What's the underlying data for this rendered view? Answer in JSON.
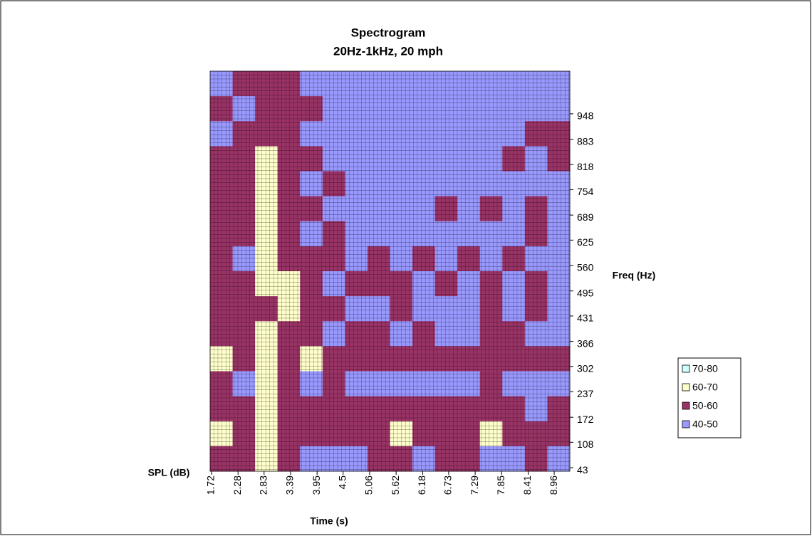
{
  "chart_data": {
    "type": "heatmap",
    "title": "Spectrogram",
    "subtitle": "20Hz-1kHz, 20 mph",
    "x_label": "Time (s)",
    "y_label": "Freq (Hz)",
    "z_label": "SPL (dB)",
    "xlim": [
      1.69,
      9.29
    ],
    "xticks": [
      1.72,
      2.28,
      2.83,
      3.39,
      3.95,
      4.5,
      5.06,
      5.62,
      6.18,
      6.73,
      7.29,
      7.85,
      8.41,
      8.96
    ],
    "ylim": [
      34,
      1057
    ],
    "yticks": [
      43,
      108,
      172,
      237,
      302,
      366,
      431,
      495,
      560,
      625,
      689,
      754,
      818,
      883,
      948
    ],
    "bands": [
      {
        "label": "40-50",
        "range": [
          40,
          50
        ],
        "color": "#9999ff"
      },
      {
        "label": "50-60",
        "range": [
          50,
          60
        ],
        "color": "#993366"
      },
      {
        "label": "60-70",
        "range": [
          60,
          70
        ],
        "color": "#ffffcc"
      },
      {
        "label": "70-80",
        "range": [
          70,
          80
        ],
        "color": "#ccffff"
      }
    ],
    "legend": "right",
    "z": [
      [
        45,
        55,
        55,
        55,
        45,
        45,
        45,
        45,
        45,
        45,
        45,
        45,
        45,
        45,
        45,
        45
      ],
      [
        55,
        45,
        55,
        55,
        55,
        45,
        45,
        45,
        45,
        45,
        45,
        45,
        45,
        45,
        45,
        45
      ],
      [
        45,
        55,
        55,
        55,
        45,
        45,
        45,
        45,
        45,
        45,
        45,
        45,
        45,
        45,
        55,
        55
      ],
      [
        55,
        55,
        65,
        55,
        55,
        45,
        45,
        45,
        45,
        45,
        45,
        45,
        45,
        55,
        45,
        55
      ],
      [
        55,
        55,
        65,
        55,
        45,
        55,
        45,
        45,
        45,
        45,
        45,
        45,
        45,
        45,
        45,
        45
      ],
      [
        55,
        55,
        65,
        55,
        55,
        45,
        45,
        45,
        45,
        45,
        55,
        45,
        55,
        45,
        55,
        45
      ],
      [
        55,
        55,
        65,
        55,
        45,
        55,
        45,
        45,
        45,
        45,
        45,
        45,
        45,
        45,
        55,
        45
      ],
      [
        55,
        45,
        65,
        55,
        55,
        55,
        45,
        55,
        45,
        55,
        45,
        55,
        45,
        55,
        45,
        45
      ],
      [
        55,
        55,
        65,
        65,
        55,
        45,
        55,
        55,
        55,
        45,
        55,
        45,
        55,
        45,
        55,
        45
      ],
      [
        55,
        55,
        55,
        65,
        55,
        55,
        45,
        45,
        55,
        45,
        45,
        45,
        55,
        45,
        55,
        45
      ],
      [
        55,
        55,
        65,
        55,
        55,
        45,
        55,
        55,
        45,
        55,
        45,
        45,
        55,
        55,
        45,
        45
      ],
      [
        65,
        55,
        65,
        55,
        65,
        55,
        55,
        55,
        55,
        55,
        55,
        55,
        55,
        55,
        55,
        55
      ],
      [
        55,
        45,
        65,
        55,
        45,
        55,
        45,
        45,
        45,
        45,
        45,
        45,
        55,
        45,
        45,
        45
      ],
      [
        55,
        55,
        65,
        55,
        55,
        55,
        55,
        55,
        55,
        55,
        55,
        55,
        55,
        55,
        45,
        55
      ],
      [
        65,
        55,
        65,
        55,
        55,
        55,
        55,
        55,
        65,
        55,
        55,
        55,
        65,
        55,
        55,
        55
      ],
      [
        55,
        55,
        65,
        55,
        45,
        45,
        45,
        55,
        55,
        45,
        55,
        55,
        45,
        45,
        55,
        45
      ]
    ]
  }
}
